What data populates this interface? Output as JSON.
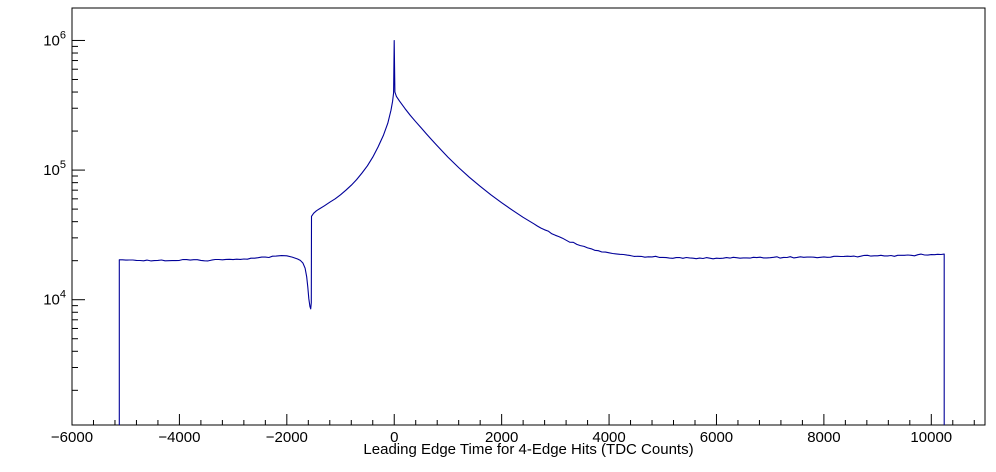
{
  "chart_data": {
    "type": "line",
    "title": "",
    "xlabel": "Leading Edge Time for 4-Edge Hits (TDC Counts)",
    "ylabel": "",
    "x_scale": "linear",
    "y_scale": "log",
    "x_range": [
      -6000,
      11000
    ],
    "y_range": [
      1080,
      1780000
    ],
    "x_major_ticks": [
      -6000,
      -4000,
      -2000,
      0,
      2000,
      4000,
      6000,
      8000,
      10000
    ],
    "x_minor_step": 400,
    "x_major_step": 2000,
    "y_major_ticks": [
      10000,
      100000,
      1000000
    ],
    "grid": false,
    "legend": false,
    "line_color": "#000099",
    "frame_color": "#000000",
    "background": "#ffffff",
    "series_name": "leading-edge-time-histogram",
    "points": [
      [
        -5120,
        1080
      ],
      [
        -5120,
        20300
      ],
      [
        -5000,
        20200
      ],
      [
        -4800,
        20100
      ],
      [
        -4600,
        20200
      ],
      [
        -4400,
        20100
      ],
      [
        -4200,
        20000
      ],
      [
        -4000,
        20100
      ],
      [
        -3800,
        20200
      ],
      [
        -3600,
        20100
      ],
      [
        -3400,
        20200
      ],
      [
        -3200,
        20300
      ],
      [
        -3000,
        20400
      ],
      [
        -2800,
        20600
      ],
      [
        -2600,
        20900
      ],
      [
        -2400,
        21300
      ],
      [
        -2200,
        21700
      ],
      [
        -2100,
        21900
      ],
      [
        -2000,
        21800
      ],
      [
        -1900,
        21300
      ],
      [
        -1800,
        20600
      ],
      [
        -1750,
        20100
      ],
      [
        -1700,
        19200
      ],
      [
        -1660,
        17500
      ],
      [
        -1630,
        15000
      ],
      [
        -1610,
        12500
      ],
      [
        -1590,
        10200
      ],
      [
        -1570,
        8900
      ],
      [
        -1555,
        8500
      ],
      [
        -1545,
        9500
      ],
      [
        -1540,
        44000
      ],
      [
        -1500,
        46500
      ],
      [
        -1450,
        48500
      ],
      [
        -1400,
        50000
      ],
      [
        -1300,
        53000
      ],
      [
        -1200,
        56500
      ],
      [
        -1100,
        60000
      ],
      [
        -1000,
        64500
      ],
      [
        -900,
        70000
      ],
      [
        -800,
        76500
      ],
      [
        -700,
        84500
      ],
      [
        -600,
        95000
      ],
      [
        -500,
        108000
      ],
      [
        -400,
        126000
      ],
      [
        -300,
        151000
      ],
      [
        -200,
        186000
      ],
      [
        -120,
        230000
      ],
      [
        -60,
        290000
      ],
      [
        -30,
        340000
      ],
      [
        -12,
        395000
      ],
      [
        0,
        1000000
      ],
      [
        12,
        400000
      ],
      [
        40,
        370000
      ],
      [
        100,
        340000
      ],
      [
        200,
        298000
      ],
      [
        300,
        264000
      ],
      [
        400,
        236000
      ],
      [
        500,
        212000
      ],
      [
        600,
        190000
      ],
      [
        700,
        171000
      ],
      [
        800,
        154000
      ],
      [
        900,
        139000
      ],
      [
        1000,
        126000
      ],
      [
        1200,
        104500
      ],
      [
        1400,
        88000
      ],
      [
        1600,
        75000
      ],
      [
        1800,
        64500
      ],
      [
        2000,
        56000
      ],
      [
        2200,
        49000
      ],
      [
        2400,
        43200
      ],
      [
        2600,
        38500
      ],
      [
        2800,
        34600
      ],
      [
        3000,
        31400
      ],
      [
        3200,
        28800
      ],
      [
        3400,
        26700
      ],
      [
        3600,
        25100
      ],
      [
        3800,
        23900
      ],
      [
        4000,
        23000
      ],
      [
        4200,
        22400
      ],
      [
        4400,
        21900
      ],
      [
        4600,
        21600
      ],
      [
        4800,
        21400
      ],
      [
        5000,
        21200
      ],
      [
        5500,
        21000
      ],
      [
        6000,
        20900
      ],
      [
        6500,
        21000
      ],
      [
        7000,
        21100
      ],
      [
        7500,
        21200
      ],
      [
        8000,
        21400
      ],
      [
        8500,
        21600
      ],
      [
        9000,
        21800
      ],
      [
        9500,
        22000
      ],
      [
        10000,
        22300
      ],
      [
        10240,
        22500
      ],
      [
        10240,
        1080
      ]
    ]
  }
}
